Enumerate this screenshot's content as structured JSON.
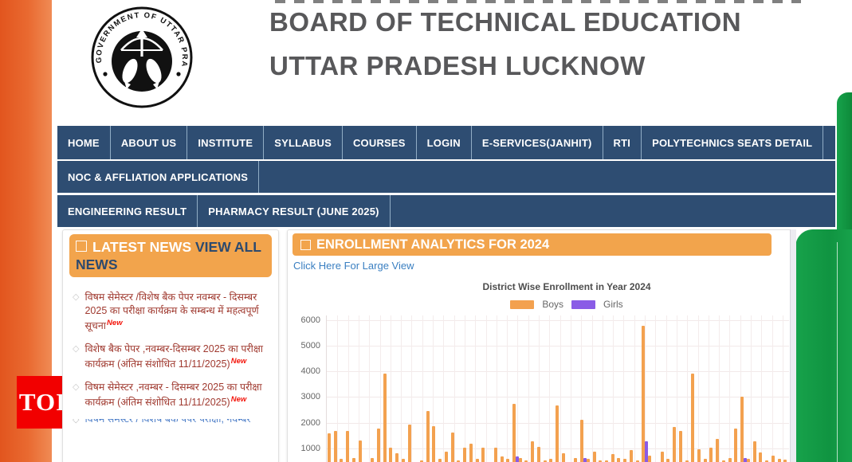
{
  "colors": {
    "nav_navy": "#2e4d72",
    "panel_orange": "#f2a44c",
    "bar_orange": "#f3a14f",
    "bar_purple": "#8a5ce6",
    "saffron_stripe": "#e96a31",
    "green_stripe": "#119544",
    "toi_red": "#f20000",
    "news_maroon": "#a03a30",
    "link_blue": "#3a7fc1",
    "title_gray": "#58585a"
  },
  "watermark": {
    "toi_label": "TOI"
  },
  "header": {
    "seal_alt": "government-of-uttar-pradesh-seal",
    "seal_ring_text": "GOVERNMENT OF UTTAR PRADESH",
    "title_line1": "BOARD OF TECHNICAL EDUCATION",
    "title_line2": "UTTAR PRADESH LUCKNOW"
  },
  "nav": {
    "rows": [
      [
        "HOME",
        "ABOUT US",
        "INSTITUTE",
        "SYLLABUS",
        "COURSES",
        "LOGIN",
        "E-SERVICES(JANHIT)",
        "RTI",
        "POLYTECHNICS SEATS DETAIL"
      ],
      [
        "NOC & AFFLIATION APPLICATIONS"
      ],
      [
        "ENGINEERING RESULT",
        "PHARMACY RESULT (JUNE 2025)"
      ]
    ]
  },
  "news": {
    "title": "LATEST NEWS",
    "view_all": "VIEW ALL NEWS",
    "badge": "New",
    "items": [
      {
        "text": "विषम सेमेस्टर /विशेष बैक पेपर नवम्बर - दिसम्बर 2025 का परीक्षा कार्यक्रम के सम्बन्ध में महत्वपूर्ण सूचना",
        "badge": true
      },
      {
        "text": "विशेष बैक पेपर ,नवम्बर-दिसम्बर 2025 का परीक्षा कार्यक्रम (अंतिम संशोधित 11/11/2025)",
        "badge": true
      },
      {
        "text": "विषम सेमेस्टर ,नवम्बर - दिसम्बर 2025 का परीक्षा कार्यक्रम (अंतिम संशोधित 11/11/2025)",
        "badge": true
      }
    ],
    "partial_item": {
      "text": "विषम सेमेस्टर / विशेष बैक पेपर परीक्षा, नवम्बर",
      "badge": false
    }
  },
  "analytics": {
    "title": "ENROLLMENT ANALYTICS FOR 2024",
    "large_view_link": "Click Here For Large View"
  },
  "chart_data": {
    "type": "bar",
    "title": "District Wise Enrollment in Year 2024",
    "legend": [
      {
        "label": "Boys",
        "color": "#f3a14f"
      },
      {
        "label": "Girls",
        "color": "#8a5ce6"
      }
    ],
    "ylim": [
      0,
      6000
    ],
    "yticks": [
      6000,
      5000,
      4000,
      3000,
      2000,
      1000
    ],
    "grid": true,
    "x_axis_labels_visible": false,
    "note": "Bottom of plot (x-axis labels, bar bases) cut off by screenshot edge; values estimated from gridlines",
    "series": [
      {
        "name": "Boys",
        "values": [
          1600,
          1700,
          620,
          1700,
          650,
          1350,
          480,
          650,
          1800,
          3950,
          1050,
          850,
          620,
          1950,
          500,
          560,
          2500,
          1900,
          620,
          900,
          1650,
          560,
          1050,
          1200,
          620,
          1050,
          480,
          1050,
          700,
          620,
          2750,
          650,
          560,
          1300,
          1100,
          550,
          620,
          2700,
          850,
          480,
          650,
          2150,
          620,
          900,
          550,
          560,
          800,
          650,
          620,
          950,
          560,
          5800,
          750,
          480,
          900,
          620,
          1850,
          1700,
          560,
          3950,
          1000,
          620,
          1050,
          1400,
          560,
          650,
          1800,
          3050,
          620,
          1300,
          880,
          560,
          750,
          620,
          600
        ]
      },
      {
        "name": "Girls",
        "values": [
          0,
          0,
          0,
          0,
          0,
          0,
          0,
          0,
          0,
          0,
          0,
          0,
          0,
          0,
          0,
          0,
          0,
          0,
          0,
          0,
          0,
          0,
          0,
          0,
          0,
          0,
          0,
          0,
          0,
          0,
          700,
          0,
          0,
          0,
          0,
          0,
          0,
          0,
          0,
          0,
          0,
          650,
          0,
          0,
          0,
          0,
          0,
          0,
          0,
          0,
          0,
          1300,
          0,
          0,
          0,
          0,
          0,
          0,
          0,
          0,
          0,
          0,
          0,
          0,
          0,
          0,
          0,
          650,
          0,
          0,
          0,
          0,
          0,
          0,
          0
        ]
      }
    ]
  }
}
